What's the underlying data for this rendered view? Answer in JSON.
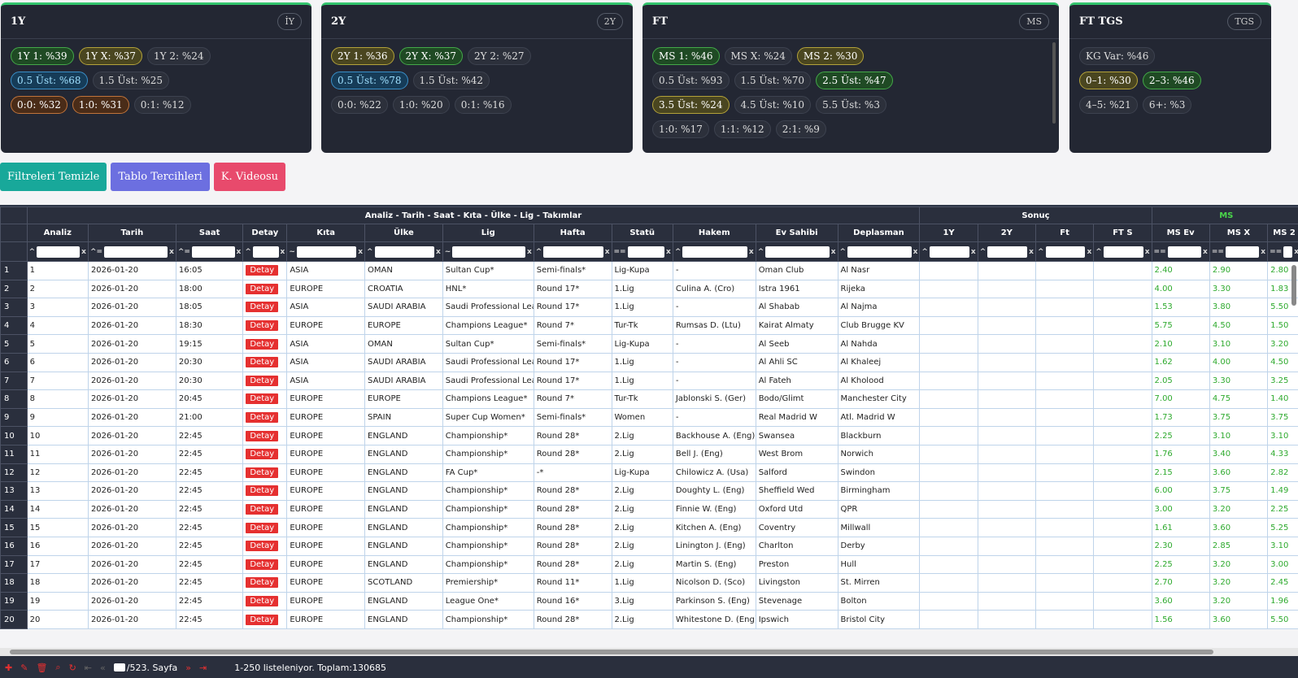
{
  "cards": [
    {
      "title": "1Y",
      "tag": "İY",
      "rows": [
        [
          {
            "t": "1Y 1: %39",
            "c": "green"
          },
          {
            "t": "1Y X: %37",
            "c": "olive"
          },
          {
            "t": "1Y 2: %24",
            "c": ""
          }
        ],
        [
          {
            "t": "0.5 Üst: %68",
            "c": "blue"
          },
          {
            "t": "1.5 Üst: %25",
            "c": ""
          }
        ],
        [
          {
            "t": "0:0: %32",
            "c": "brown"
          },
          {
            "t": "1:0: %31",
            "c": "brown"
          },
          {
            "t": "0:1: %12",
            "c": ""
          }
        ]
      ]
    },
    {
      "title": "2Y",
      "tag": "2Y",
      "rows": [
        [
          {
            "t": "2Y 1: %36",
            "c": "olive"
          },
          {
            "t": "2Y X: %37",
            "c": "green"
          },
          {
            "t": "2Y 2: %27",
            "c": ""
          }
        ],
        [
          {
            "t": "0.5 Üst: %78",
            "c": "blue"
          },
          {
            "t": "1.5 Üst: %42",
            "c": ""
          }
        ],
        [
          {
            "t": "0:0: %22",
            "c": ""
          },
          {
            "t": "1:0: %20",
            "c": ""
          },
          {
            "t": "0:1: %16",
            "c": ""
          }
        ]
      ]
    },
    {
      "title": "FT",
      "tag": "MS",
      "rows": [
        [
          {
            "t": "MS 1: %46",
            "c": "green"
          },
          {
            "t": "MS X: %24",
            "c": ""
          },
          {
            "t": "MS 2: %30",
            "c": "olive"
          }
        ],
        [
          {
            "t": "0.5 Üst: %93",
            "c": ""
          },
          {
            "t": "1.5 Üst: %70",
            "c": ""
          },
          {
            "t": "2.5 Üst: %47",
            "c": "green"
          }
        ],
        [
          {
            "t": "3.5 Üst: %24",
            "c": "olive"
          },
          {
            "t": "4.5 Üst: %10",
            "c": ""
          },
          {
            "t": "5.5 Üst: %3",
            "c": ""
          }
        ],
        [
          {
            "t": "1:0: %17",
            "c": ""
          },
          {
            "t": "1:1: %12",
            "c": ""
          },
          {
            "t": "2:1: %9",
            "c": ""
          }
        ]
      ]
    },
    {
      "title": "FT TGS",
      "tag": "TGS",
      "rows": [
        [
          {
            "t": "KG Var: %46",
            "c": ""
          }
        ],
        [
          {
            "t": "0–1: %30",
            "c": "olive"
          },
          {
            "t": "2–3: %46",
            "c": "green"
          }
        ],
        [
          {
            "t": "4–5: %21",
            "c": ""
          },
          {
            "t": "6+: %3",
            "c": ""
          }
        ]
      ]
    }
  ],
  "toolbar": {
    "clear": "Filtreleri Temizle",
    "prefs": "Tablo Tercihleri",
    "video": "K. Videosu"
  },
  "grid": {
    "group1": "Analiz - Tarih - Saat - Kıta - Ülke - Lig - Takımlar",
    "group2": "Sonuç",
    "group3": "MS",
    "columns": [
      "Analiz",
      "Tarih",
      "Saat",
      "Detay",
      "Kıta",
      "Ülke",
      "Lig",
      "Hafta",
      "Statü",
      "Hakem",
      "Ev Sahibi",
      "Deplasman",
      "1Y",
      "2Y",
      "Ft",
      "FT S",
      "MS Ev",
      "MS X",
      "MS 2"
    ],
    "filters": [
      "^",
      "^=",
      "^=",
      "^",
      "~",
      "^",
      "~",
      "^",
      "==",
      "^",
      "^",
      "^",
      "^",
      "^",
      "^",
      "^",
      "==",
      "==",
      "=="
    ],
    "detail_label": "Detay",
    "rows": [
      [
        "1",
        "2026-01-20",
        "16:05",
        "ASIA",
        "OMAN",
        "Sultan Cup*",
        "Semi-finals*",
        "Lig-Kupa",
        "-",
        "Oman Club",
        "Al Nasr",
        "2.40",
        "2.90",
        "2.80"
      ],
      [
        "2",
        "2026-01-20",
        "18:00",
        "EUROPE",
        "CROATIA",
        "HNL*",
        "Round 17*",
        "1.Lig",
        "Culina A. (Cro)",
        "Istra 1961",
        "Rijeka",
        "4.00",
        "3.30",
        "1.83"
      ],
      [
        "3",
        "2026-01-20",
        "18:05",
        "ASIA",
        "SAUDI ARABIA",
        "Saudi Professional League*",
        "Round 17*",
        "1.Lig",
        "-",
        "Al Shabab",
        "Al Najma",
        "1.53",
        "3.80",
        "5.50"
      ],
      [
        "4",
        "2026-01-20",
        "18:30",
        "EUROPE",
        "EUROPE",
        "Champions League*",
        "Round 7*",
        "Tur-Tk",
        "Rumsas D. (Ltu)",
        "Kairat Almaty",
        "Club Brugge KV",
        "5.75",
        "4.50",
        "1.50"
      ],
      [
        "5",
        "2026-01-20",
        "19:15",
        "ASIA",
        "OMAN",
        "Sultan Cup*",
        "Semi-finals*",
        "Lig-Kupa",
        "-",
        "Al Seeb",
        "Al Nahda",
        "2.10",
        "3.10",
        "3.20"
      ],
      [
        "6",
        "2026-01-20",
        "20:30",
        "ASIA",
        "SAUDI ARABIA",
        "Saudi Professional League*",
        "Round 17*",
        "1.Lig",
        "-",
        "Al Ahli SC",
        "Al Khaleej",
        "1.62",
        "4.00",
        "4.50"
      ],
      [
        "7",
        "2026-01-20",
        "20:30",
        "ASIA",
        "SAUDI ARABIA",
        "Saudi Professional League*",
        "Round 17*",
        "1.Lig",
        "-",
        "Al Fateh",
        "Al Kholood",
        "2.05",
        "3.30",
        "3.25"
      ],
      [
        "8",
        "2026-01-20",
        "20:45",
        "EUROPE",
        "EUROPE",
        "Champions League*",
        "Round 7*",
        "Tur-Tk",
        "Jablonski S. (Ger)",
        "Bodo/Glimt",
        "Manchester City",
        "7.00",
        "4.75",
        "1.40"
      ],
      [
        "9",
        "2026-01-20",
        "21:00",
        "EUROPE",
        "SPAIN",
        "Super Cup Women*",
        "Semi-finals*",
        "Women",
        "-",
        "Real Madrid W",
        "Atl. Madrid W",
        "1.73",
        "3.75",
        "3.75"
      ],
      [
        "10",
        "2026-01-20",
        "22:45",
        "EUROPE",
        "ENGLAND",
        "Championship*",
        "Round 28*",
        "2.Lig",
        "Backhouse A. (Eng)",
        "Swansea",
        "Blackburn",
        "2.25",
        "3.10",
        "3.10"
      ],
      [
        "11",
        "2026-01-20",
        "22:45",
        "EUROPE",
        "ENGLAND",
        "Championship*",
        "Round 28*",
        "2.Lig",
        "Bell J. (Eng)",
        "West Brom",
        "Norwich",
        "1.76",
        "3.40",
        "4.33"
      ],
      [
        "12",
        "2026-01-20",
        "22:45",
        "EUROPE",
        "ENGLAND",
        "FA Cup*",
        "-*",
        "Lig-Kupa",
        "Chilowicz A. (Usa)",
        "Salford",
        "Swindon",
        "2.15",
        "3.60",
        "2.82"
      ],
      [
        "13",
        "2026-01-20",
        "22:45",
        "EUROPE",
        "ENGLAND",
        "Championship*",
        "Round 28*",
        "2.Lig",
        "Doughty L. (Eng)",
        "Sheffield Wed",
        "Birmingham",
        "6.00",
        "3.75",
        "1.49"
      ],
      [
        "14",
        "2026-01-20",
        "22:45",
        "EUROPE",
        "ENGLAND",
        "Championship*",
        "Round 28*",
        "2.Lig",
        "Finnie W. (Eng)",
        "Oxford Utd",
        "QPR",
        "3.00",
        "3.20",
        "2.25"
      ],
      [
        "15",
        "2026-01-20",
        "22:45",
        "EUROPE",
        "ENGLAND",
        "Championship*",
        "Round 28*",
        "2.Lig",
        "Kitchen A. (Eng)",
        "Coventry",
        "Millwall",
        "1.61",
        "3.60",
        "5.25"
      ],
      [
        "16",
        "2026-01-20",
        "22:45",
        "EUROPE",
        "ENGLAND",
        "Championship*",
        "Round 28*",
        "2.Lig",
        "Linington J. (Eng)",
        "Charlton",
        "Derby",
        "2.30",
        "2.85",
        "3.10"
      ],
      [
        "17",
        "2026-01-20",
        "22:45",
        "EUROPE",
        "ENGLAND",
        "Championship*",
        "Round 28*",
        "2.Lig",
        "Martin S. (Eng)",
        "Preston",
        "Hull",
        "2.25",
        "3.20",
        "3.00"
      ],
      [
        "18",
        "2026-01-20",
        "22:45",
        "EUROPE",
        "SCOTLAND",
        "Premiership*",
        "Round 11*",
        "1.Lig",
        "Nicolson D. (Sco)",
        "Livingston",
        "St. Mirren",
        "2.70",
        "3.20",
        "2.45"
      ],
      [
        "19",
        "2026-01-20",
        "22:45",
        "EUROPE",
        "ENGLAND",
        "League One*",
        "Round 16*",
        "3.Lig",
        "Parkinson S. (Eng)",
        "Stevenage",
        "Bolton",
        "3.60",
        "3.20",
        "1.96"
      ],
      [
        "20",
        "2026-01-20",
        "22:45",
        "EUROPE",
        "ENGLAND",
        "Championship*",
        "Round 28*",
        "2.Lig",
        "Whitestone D. (Eng)",
        "Ipswich",
        "Bristol City",
        "1.56",
        "3.60",
        "5.50"
      ]
    ]
  },
  "status": {
    "page": "/523. Sayfa",
    "summary": "1-250 listeleniyor. Toplam:130685"
  }
}
